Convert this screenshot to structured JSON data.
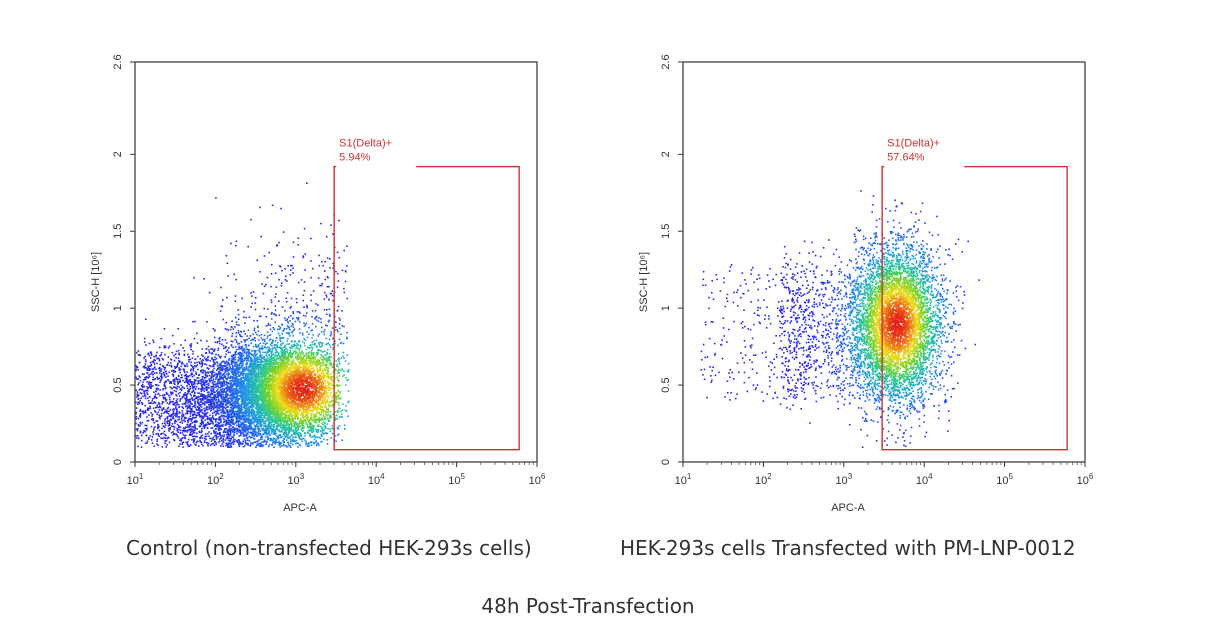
{
  "chart_data": [
    {
      "type": "scatter",
      "xlabel": "APC-A",
      "ylabel": "SSC-H [10⁶]",
      "x_scale": "log",
      "xlim": [
        10,
        1000000
      ],
      "ylim": [
        0,
        2.6
      ],
      "x_ticks": [
        10,
        100,
        1000,
        10000,
        100000,
        1000000
      ],
      "y_ticks": [
        0,
        0.5,
        1,
        1.5,
        2,
        2.6
      ],
      "gate": {
        "name": "S1(Delta)+",
        "percent": "5.94%",
        "x_range": [
          3000,
          600000
        ],
        "y_range": [
          0.08,
          1.92
        ],
        "color": "#cc3333"
      },
      "population": {
        "center_x": 1200,
        "center_y": 0.48,
        "events_shown": 9000
      },
      "caption": "Control (non-transfected HEK-293s cells)"
    },
    {
      "type": "scatter",
      "xlabel": "APC-A",
      "ylabel": "SSC-H [10⁶]",
      "x_scale": "log",
      "xlim": [
        10,
        1000000
      ],
      "ylim": [
        0,
        2.6
      ],
      "x_ticks": [
        10,
        100,
        1000,
        10000,
        100000,
        1000000
      ],
      "y_ticks": [
        0,
        0.5,
        1,
        1.5,
        2,
        2.6
      ],
      "gate": {
        "name": "S1(Delta)+",
        "percent": "57.64%",
        "x_range": [
          3000,
          600000
        ],
        "y_range": [
          0.08,
          1.92
        ],
        "color": "#cc3333"
      },
      "population": {
        "center_x": 4500,
        "center_y": 0.9,
        "events_shown": 6500
      },
      "caption": "HEK-293s cells Transfected with PM-LNP-0012"
    }
  ],
  "footer": "48h Post-Transfection"
}
